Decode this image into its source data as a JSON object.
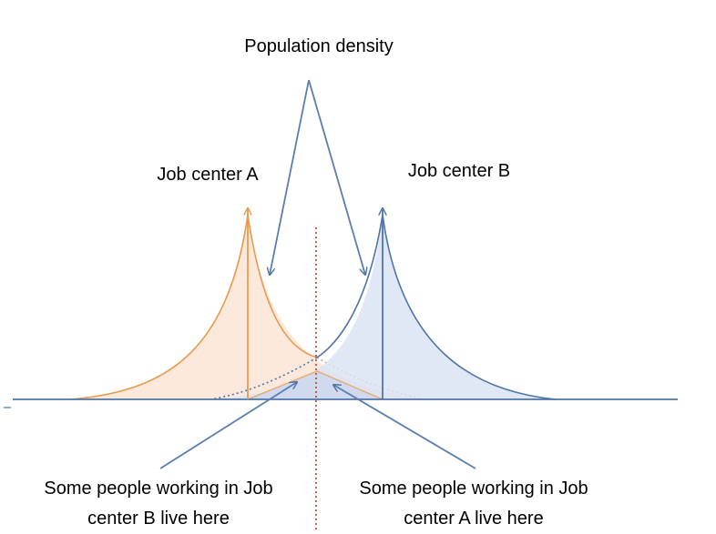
{
  "title": "Population density",
  "labels": {
    "job_center_a": "Job center A",
    "job_center_b": "Job center B"
  },
  "notes": {
    "left": {
      "line1": "Some people working in Job",
      "line2": "center B live here"
    },
    "right": {
      "line1": "Some people working in Job",
      "line2": "center A live here"
    }
  },
  "colors": {
    "job_center_a": "#E89A4E",
    "job_center_a_fill": "#FBE5D6",
    "job_center_b": "#4F74A8",
    "job_center_b_fill": "#DAE3F3",
    "boundary": "#C0392B",
    "axis": "#4F74A8",
    "pointer": "#5B7DB1"
  }
}
